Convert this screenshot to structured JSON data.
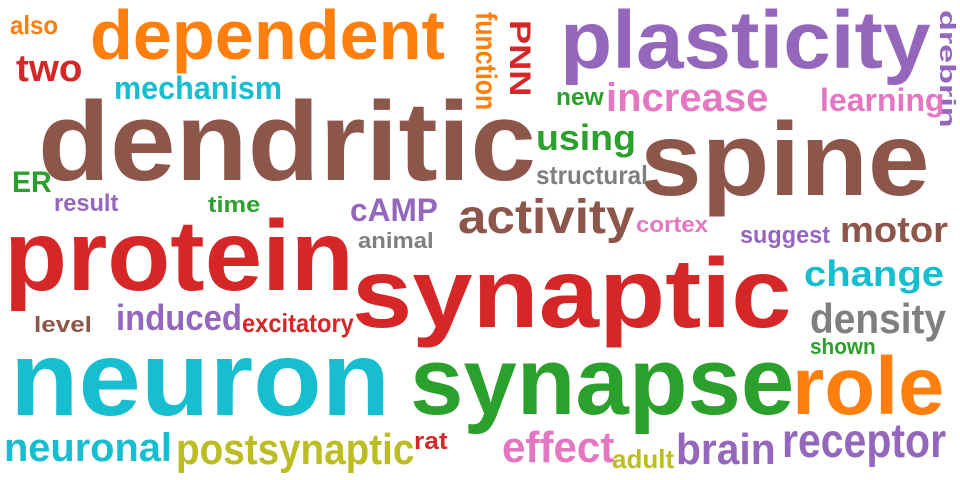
{
  "colors": {
    "red": "#d62728",
    "orange": "#ff7f0e",
    "purple": "#9467bd",
    "brown": "#8c564b",
    "cyan": "#17becf",
    "green": "#2ca02c",
    "pink": "#e377c2",
    "gray": "#7f7f7f",
    "olive": "#bcbd22"
  },
  "words": [
    {
      "text": "also",
      "color": "orange"
    },
    {
      "text": "dependent",
      "color": "orange"
    },
    {
      "text": "two",
      "color": "red"
    },
    {
      "text": "function",
      "color": "orange"
    },
    {
      "text": "PNN",
      "color": "red"
    },
    {
      "text": "plasticity",
      "color": "purple"
    },
    {
      "text": "drebrin",
      "color": "purple"
    },
    {
      "text": "mechanism",
      "color": "cyan"
    },
    {
      "text": "new",
      "color": "green"
    },
    {
      "text": "increase",
      "color": "pink"
    },
    {
      "text": "learning",
      "color": "pink"
    },
    {
      "text": "dendritic",
      "color": "brown"
    },
    {
      "text": "using",
      "color": "green"
    },
    {
      "text": "spine",
      "color": "brown"
    },
    {
      "text": "structural",
      "color": "gray"
    },
    {
      "text": "ER",
      "color": "green"
    },
    {
      "text": "result",
      "color": "purple"
    },
    {
      "text": "time",
      "color": "green"
    },
    {
      "text": "cAMP",
      "color": "purple"
    },
    {
      "text": "activity",
      "color": "brown"
    },
    {
      "text": "cortex",
      "color": "pink"
    },
    {
      "text": "suggest",
      "color": "purple"
    },
    {
      "text": "motor",
      "color": "brown"
    },
    {
      "text": "protein",
      "color": "red"
    },
    {
      "text": "animal",
      "color": "gray"
    },
    {
      "text": "synaptic",
      "color": "red"
    },
    {
      "text": "change",
      "color": "cyan"
    },
    {
      "text": "level",
      "color": "brown"
    },
    {
      "text": "induced",
      "color": "purple"
    },
    {
      "text": "excitatory",
      "color": "red"
    },
    {
      "text": "density",
      "color": "gray"
    },
    {
      "text": "shown",
      "color": "green"
    },
    {
      "text": "neuron",
      "color": "cyan"
    },
    {
      "text": "synapse",
      "color": "green"
    },
    {
      "text": "role",
      "color": "orange"
    },
    {
      "text": "neuronal",
      "color": "cyan"
    },
    {
      "text": "postsynaptic",
      "color": "olive"
    },
    {
      "text": "rat",
      "color": "red"
    },
    {
      "text": "effect",
      "color": "pink"
    },
    {
      "text": "adult",
      "color": "olive"
    },
    {
      "text": "brain",
      "color": "purple"
    },
    {
      "text": "receptor",
      "color": "purple"
    }
  ]
}
